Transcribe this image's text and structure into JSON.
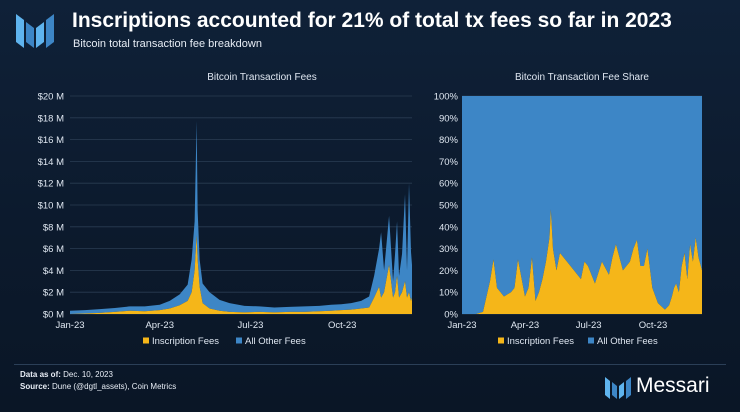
{
  "header": {
    "title": "Inscriptions accounted for 21% of total tx fees so far in 2023",
    "subtitle": "Bitcoin total transaction fee breakdown"
  },
  "colors": {
    "inscription": "#f5b619",
    "other": "#3d86c6",
    "background": "#0c1a2e",
    "grid": "#2a3c52"
  },
  "chart_data": [
    {
      "type": "area",
      "stacked": true,
      "title": "Bitcoin Transaction Fees",
      "xlabel": "",
      "ylabel": "",
      "ylim": [
        0,
        20
      ],
      "yunit": "$M",
      "yticks": [
        "$0 M",
        "$2 M",
        "$4 M",
        "$6 M",
        "$8 M",
        "$10 M",
        "$12 M",
        "$14 M",
        "$16 M",
        "$18 M",
        "$20 M"
      ],
      "xticks": [
        "Jan-23",
        "Apr-23",
        "Jul-23",
        "Oct-23"
      ],
      "legend": [
        "Inscription Fees",
        "All Other Fees"
      ],
      "legend_position": "bottom",
      "x_days": [
        0,
        15,
        30,
        45,
        60,
        75,
        90,
        100,
        110,
        118,
        122,
        125,
        127,
        128,
        130,
        133,
        140,
        150,
        160,
        175,
        190,
        205,
        220,
        235,
        250,
        262,
        272,
        282,
        292,
        300,
        305,
        310,
        312,
        315,
        320,
        324,
        326,
        328,
        330,
        333,
        336,
        338,
        340,
        342,
        343
      ],
      "series": [
        {
          "name": "Inscription Fees",
          "values": [
            0,
            0.05,
            0.1,
            0.2,
            0.3,
            0.25,
            0.35,
            0.5,
            0.8,
            1.2,
            2.0,
            4.0,
            7.2,
            5.0,
            2.5,
            1.0,
            0.5,
            0.3,
            0.2,
            0.15,
            0.2,
            0.15,
            0.2,
            0.2,
            0.25,
            0.3,
            0.35,
            0.4,
            0.5,
            0.6,
            1.5,
            2.5,
            1.5,
            2.0,
            4.5,
            1.5,
            2.0,
            3.5,
            1.5,
            2.0,
            3.0,
            1.5,
            2.0,
            1.2,
            1.5
          ]
        },
        {
          "name": "All Other Fees",
          "values": [
            0.3,
            0.3,
            0.35,
            0.35,
            0.4,
            0.45,
            0.5,
            0.7,
            1.0,
            1.5,
            3.0,
            4.5,
            10.5,
            4.5,
            2.5,
            1.8,
            1.5,
            1.0,
            0.8,
            0.6,
            0.5,
            0.45,
            0.45,
            0.5,
            0.5,
            0.55,
            0.55,
            0.6,
            0.7,
            1.0,
            2.0,
            3.5,
            6.0,
            2.0,
            4.5,
            1.5,
            3.5,
            5.0,
            2.0,
            3.5,
            8.0,
            2.5,
            10.0,
            4.5,
            3.0
          ]
        }
      ]
    },
    {
      "type": "area",
      "stacked": true,
      "title": "Bitcoin Transaction Fee Share",
      "xlabel": "",
      "ylabel": "",
      "ylim": [
        0,
        100
      ],
      "yunit": "%",
      "yticks": [
        "0%",
        "10%",
        "20%",
        "30%",
        "40%",
        "50%",
        "60%",
        "70%",
        "80%",
        "90%",
        "100%"
      ],
      "xticks": [
        "Jan-23",
        "Apr-23",
        "Jul-23",
        "Oct-23"
      ],
      "legend": [
        "Inscription Fees",
        "All Other Fees"
      ],
      "legend_position": "bottom",
      "x_days": [
        0,
        10,
        20,
        30,
        35,
        40,
        45,
        50,
        60,
        70,
        75,
        80,
        90,
        95,
        100,
        105,
        110,
        115,
        120,
        125,
        127,
        130,
        135,
        140,
        150,
        160,
        170,
        175,
        180,
        190,
        200,
        210,
        215,
        220,
        230,
        240,
        245,
        250,
        255,
        260,
        265,
        272,
        280,
        290,
        296,
        300,
        303,
        306,
        310,
        314,
        318,
        322,
        326,
        330,
        334,
        338,
        343
      ],
      "series": [
        {
          "name": "Inscription Fees",
          "values": [
            0,
            0,
            0,
            1,
            8,
            15,
            25,
            12,
            8,
            10,
            12,
            25,
            8,
            12,
            26,
            6,
            10,
            16,
            24,
            35,
            48,
            30,
            20,
            28,
            24,
            20,
            16,
            24,
            22,
            14,
            24,
            18,
            26,
            32,
            20,
            24,
            30,
            34,
            22,
            22,
            30,
            12,
            5,
            2,
            4,
            8,
            12,
            14,
            10,
            22,
            28,
            16,
            32,
            24,
            35,
            26,
            20
          ]
        },
        {
          "name": "All Other Fees",
          "values": [
            100,
            100,
            100,
            99,
            92,
            85,
            75,
            88,
            92,
            90,
            88,
            75,
            92,
            88,
            74,
            94,
            90,
            84,
            76,
            65,
            52,
            70,
            80,
            72,
            76,
            80,
            84,
            76,
            78,
            86,
            76,
            82,
            74,
            68,
            80,
            76,
            70,
            66,
            78,
            78,
            70,
            88,
            95,
            98,
            96,
            92,
            88,
            86,
            90,
            78,
            72,
            84,
            68,
            76,
            65,
            74,
            80
          ]
        }
      ]
    }
  ],
  "footer": {
    "data_as_of_label": "Data as of:",
    "data_as_of_value": "Dec. 10, 2023",
    "source_label": "Source:",
    "source_value": "Dune (@dgtl_assets), Coin Metrics"
  },
  "brand": {
    "name": "Messari"
  }
}
